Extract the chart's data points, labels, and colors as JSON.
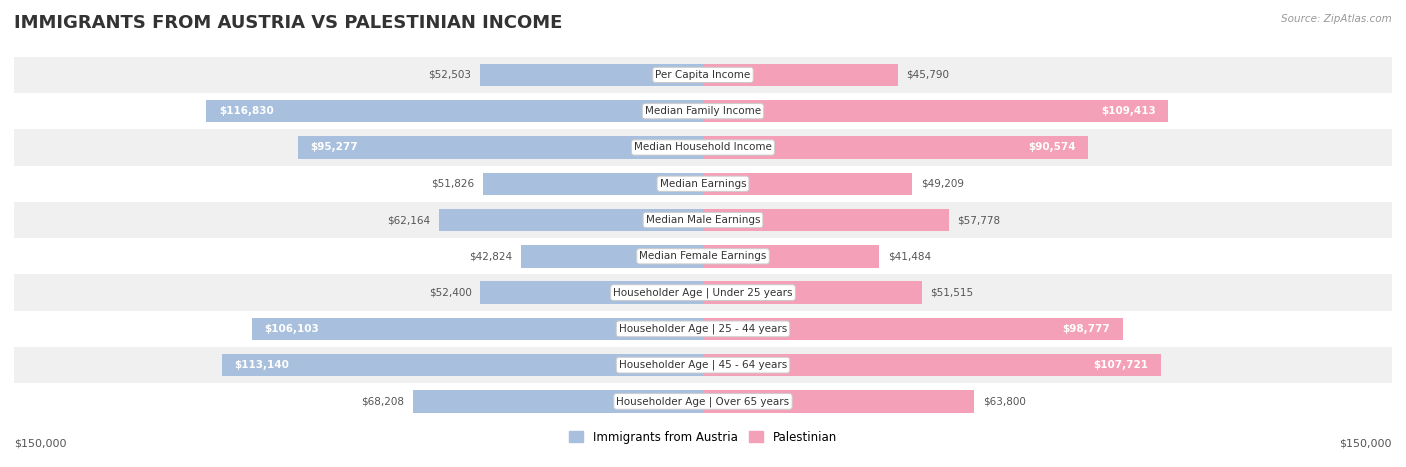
{
  "title": "IMMIGRANTS FROM AUSTRIA VS PALESTINIAN INCOME",
  "source": "Source: ZipAtlas.com",
  "categories": [
    "Per Capita Income",
    "Median Family Income",
    "Median Household Income",
    "Median Earnings",
    "Median Male Earnings",
    "Median Female Earnings",
    "Householder Age | Under 25 years",
    "Householder Age | 25 - 44 years",
    "Householder Age | 45 - 64 years",
    "Householder Age | Over 65 years"
  ],
  "austria_values": [
    52503,
    116830,
    95277,
    51826,
    62164,
    42824,
    52400,
    106103,
    113140,
    68208
  ],
  "palestinian_values": [
    45790,
    109413,
    90574,
    49209,
    57778,
    41484,
    51515,
    98777,
    107721,
    63800
  ],
  "austria_labels": [
    "$52,503",
    "$116,830",
    "$95,277",
    "$51,826",
    "$62,164",
    "$42,824",
    "$52,400",
    "$106,103",
    "$113,140",
    "$68,208"
  ],
  "palestinian_labels": [
    "$45,790",
    "$109,413",
    "$90,574",
    "$49,209",
    "$57,778",
    "$41,484",
    "$51,515",
    "$98,777",
    "$107,721",
    "$63,800"
  ],
  "austria_color": "#a8c0de",
  "palestinian_color": "#f4a0b8",
  "label_color_outside": "#555555",
  "label_color_inside": "#ffffff",
  "max_value": 150000,
  "inside_threshold": 70000,
  "legend_austria": "Immigrants from Austria",
  "legend_palestinian": "Palestinian",
  "row_color_odd": "#f0f0f0",
  "row_color_even": "#ffffff",
  "xlabel_left": "$150,000",
  "xlabel_right": "$150,000",
  "title_fontsize": 13,
  "label_fontsize": 7.5,
  "category_fontsize": 7.5,
  "source_fontsize": 7.5
}
